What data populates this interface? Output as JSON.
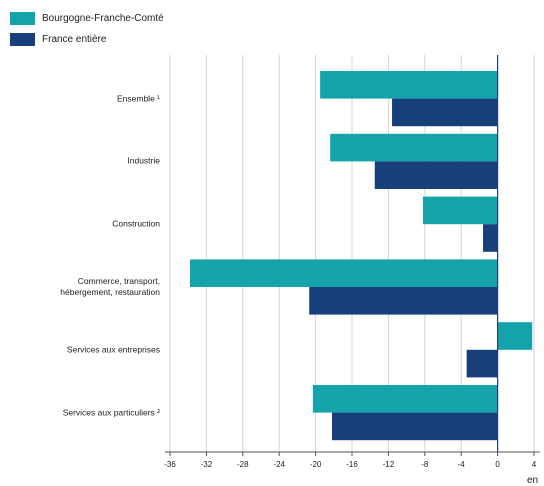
{
  "chart_data": {
    "type": "bar",
    "orientation": "horizontal",
    "categories": [
      "Ensemble ¹",
      "Industrie",
      "Construction",
      "Commerce, transport,\nhébergement, restauration",
      "Services aux entreprises",
      "Services aux particuliers ²"
    ],
    "series": [
      {
        "name": "Bourgogne-Franche-Comté",
        "color": "#14a3ab",
        "values": [
          -19.5,
          -18.4,
          -8.2,
          -33.8,
          3.8,
          -20.3
        ]
      },
      {
        "name": "France entière",
        "color": "#173f7a",
        "values": [
          -11.6,
          -13.5,
          -1.6,
          -20.7,
          -3.4,
          -18.2
        ]
      }
    ],
    "xlim": [
      -36,
      4
    ],
    "x_ticks": [
      -36,
      -32,
      -28,
      -24,
      -20,
      -16,
      -12,
      -8,
      -4,
      0,
      4
    ],
    "xlabel": "en",
    "grid": true,
    "legend": "top-left"
  }
}
